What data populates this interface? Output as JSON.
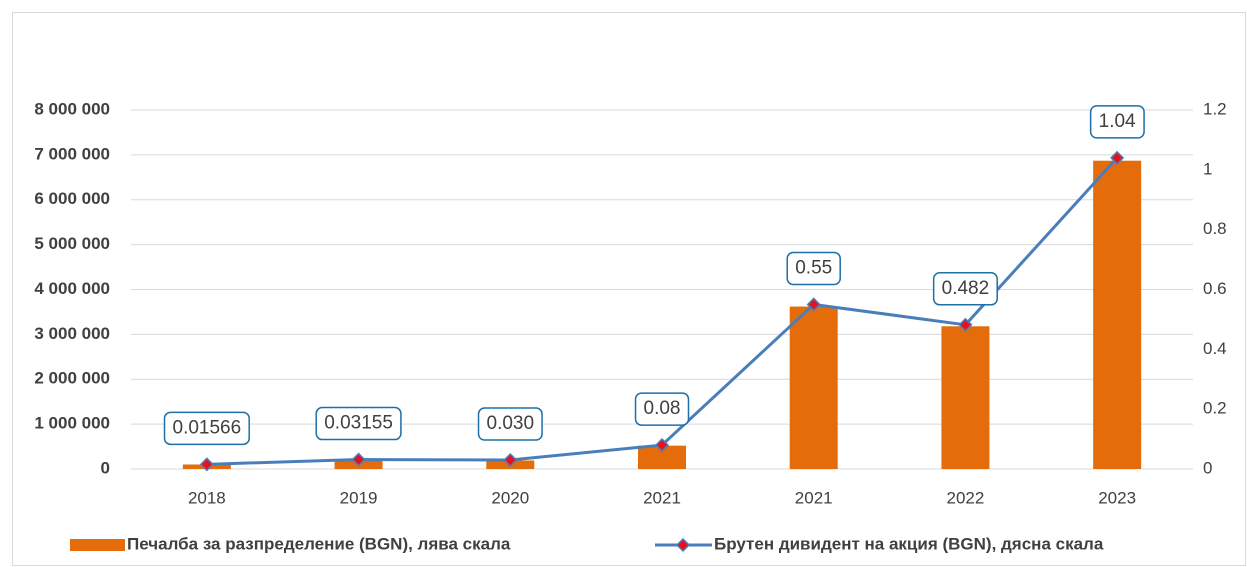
{
  "chart_data": {
    "type": "combo",
    "categories": [
      "2018",
      "2019",
      "2020",
      "2021",
      "2021",
      "2022",
      "2023"
    ],
    "series": [
      {
        "name": "Печалба за разпределение (BGN), лява скала",
        "type": "bar",
        "color": "#e46c0a",
        "values": [
          100000,
          180000,
          190000,
          520000,
          3620000,
          3180000,
          6870000
        ]
      },
      {
        "name": "Брутен дивидент на акция (BGN), дясна скала",
        "type": "line",
        "axis": "y2",
        "color": "#4a7ebb",
        "marker_color": "#e8101a",
        "values": [
          0.01566,
          0.03155,
          0.03,
          0.08,
          0.55,
          0.482,
          1.04
        ],
        "value_labels": [
          "0.01566",
          "0.03155",
          "0.030",
          "0.08",
          "0.55",
          "0.482",
          "1.04"
        ]
      }
    ],
    "ylim": [
      0,
      8000000
    ],
    "yticks": [
      0,
      {
        "value": 1000000,
        "label": "1 000 000"
      },
      {
        "value": 2000000,
        "label": "2 000 000"
      },
      {
        "value": 3000000,
        "label": "3 000 000"
      },
      {
        "value": 4000000,
        "label": "4 000 000"
      },
      {
        "value": 5000000,
        "label": "5 000 000"
      },
      {
        "value": 6000000,
        "label": "6 000 000"
      },
      {
        "value": 7000000,
        "label": "7 000 000"
      },
      {
        "value": 8000000,
        "label": "8 000 000"
      }
    ],
    "y2lim": [
      0,
      1.2
    ],
    "y2ticks": [
      0,
      0.2,
      0.4,
      0.6,
      0.8,
      1,
      1.2
    ],
    "grid": true,
    "legend": "bottom"
  }
}
